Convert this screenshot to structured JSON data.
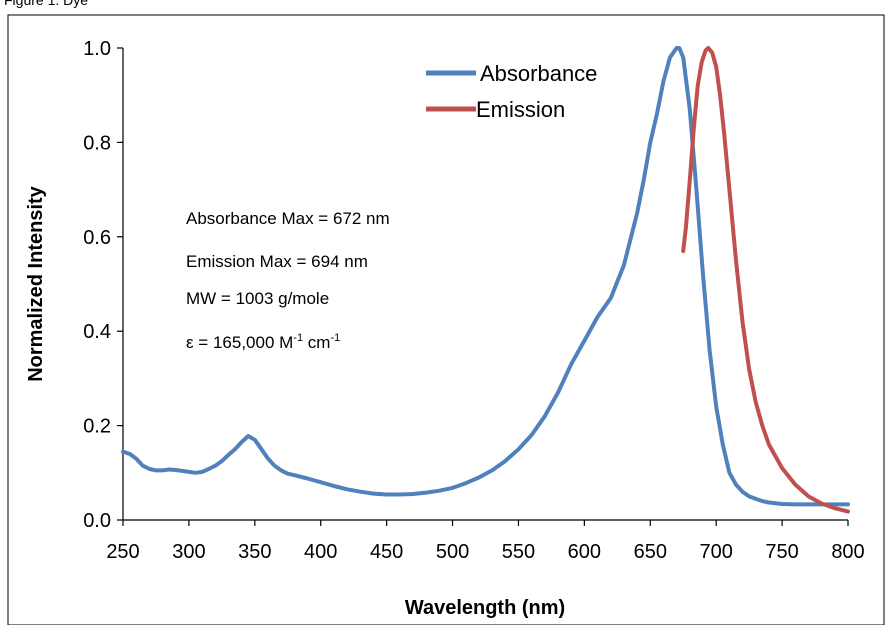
{
  "caption": "Figure 1. Dye",
  "chart_data": {
    "type": "line",
    "title": "",
    "xlabel": "Wavelength (nm)",
    "ylabel": "Normalized Intensity",
    "xlim": [
      250,
      800
    ],
    "ylim": [
      0.0,
      1.0
    ],
    "xticks": [
      "250",
      "300",
      "350",
      "400",
      "450",
      "500",
      "550",
      "600",
      "650",
      "700",
      "750",
      "800"
    ],
    "yticks": [
      "0.0",
      "0.2",
      "0.4",
      "0.6",
      "0.8",
      "1.0"
    ],
    "grid": false,
    "legend_position": "top-center",
    "series": [
      {
        "name": "Absorbance",
        "color": "#4f81bd",
        "x": [
          250,
          255,
          260,
          265,
          270,
          275,
          280,
          285,
          290,
          295,
          300,
          305,
          310,
          315,
          320,
          325,
          330,
          335,
          340,
          345,
          350,
          355,
          360,
          365,
          370,
          375,
          380,
          390,
          400,
          410,
          420,
          430,
          440,
          450,
          460,
          470,
          480,
          490,
          500,
          510,
          520,
          530,
          540,
          550,
          560,
          570,
          580,
          590,
          600,
          610,
          620,
          630,
          640,
          645,
          650,
          655,
          660,
          665,
          670,
          672,
          675,
          680,
          685,
          690,
          695,
          700,
          705,
          710,
          715,
          720,
          725,
          730,
          735,
          740,
          750,
          760,
          770,
          780,
          790,
          800
        ],
        "y": [
          0.145,
          0.14,
          0.13,
          0.115,
          0.108,
          0.105,
          0.105,
          0.107,
          0.106,
          0.104,
          0.102,
          0.1,
          0.102,
          0.108,
          0.115,
          0.125,
          0.138,
          0.15,
          0.165,
          0.178,
          0.17,
          0.15,
          0.13,
          0.115,
          0.105,
          0.098,
          0.095,
          0.088,
          0.08,
          0.072,
          0.065,
          0.06,
          0.056,
          0.054,
          0.054,
          0.055,
          0.058,
          0.062,
          0.068,
          0.078,
          0.09,
          0.105,
          0.125,
          0.15,
          0.18,
          0.22,
          0.27,
          0.33,
          0.38,
          0.43,
          0.47,
          0.54,
          0.65,
          0.72,
          0.8,
          0.86,
          0.93,
          0.98,
          1.0,
          1.0,
          0.98,
          0.87,
          0.7,
          0.52,
          0.36,
          0.24,
          0.16,
          0.1,
          0.075,
          0.06,
          0.05,
          0.045,
          0.04,
          0.037,
          0.034,
          0.033,
          0.033,
          0.033,
          0.033,
          0.033
        ]
      },
      {
        "name": "Emission",
        "color": "#c0504d",
        "x": [
          675,
          677,
          680,
          683,
          686,
          689,
          692,
          694,
          697,
          700,
          703,
          706,
          710,
          715,
          720,
          725,
          730,
          735,
          740,
          750,
          760,
          770,
          780,
          790,
          800
        ],
        "y": [
          0.57,
          0.62,
          0.72,
          0.83,
          0.92,
          0.97,
          0.995,
          1.0,
          0.99,
          0.96,
          0.9,
          0.82,
          0.7,
          0.55,
          0.42,
          0.32,
          0.25,
          0.2,
          0.16,
          0.11,
          0.075,
          0.05,
          0.035,
          0.025,
          0.018
        ]
      }
    ],
    "annotations": {
      "abs_max": "Absorbance Max = 672 nm",
      "em_max": "Emission Max = 694 nm",
      "mw": "MW = 1003 g/mole",
      "eps_prefix": "ε =  165,000 M",
      "eps_sup1": "-1",
      "eps_mid": " cm",
      "eps_sup2": "-1"
    }
  }
}
